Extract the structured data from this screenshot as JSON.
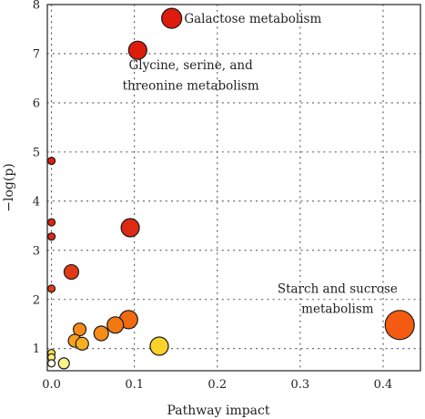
{
  "chart_data": {
    "type": "scatter",
    "xlabel": "Pathway impact",
    "ylabel": "−log(p)",
    "xlim": [
      -0.005,
      0.445
    ],
    "ylim": [
      0.55,
      8
    ],
    "xticks": [
      0,
      0.1,
      0.2,
      0.3,
      0.4
    ],
    "xtick_labels": [
      "0.0",
      "0.1",
      "0.2",
      "0.3",
      "0.4"
    ],
    "yticks": [
      1,
      2,
      3,
      4,
      5,
      6,
      7,
      8
    ],
    "ytick_labels": [
      "1",
      "2",
      "3",
      "4",
      "5",
      "6",
      "7",
      "8"
    ],
    "grid": true,
    "points": [
      {
        "x": 0.145,
        "y": 7.72,
        "size": 11,
        "color": "#dd1c0c"
      },
      {
        "x": 0.104,
        "y": 7.07,
        "size": 10,
        "color": "#dd1c0c"
      },
      {
        "x": 0.0,
        "y": 4.82,
        "size": 4,
        "color": "#dd2010"
      },
      {
        "x": 0.0,
        "y": 3.57,
        "size": 4,
        "color": "#dd2612"
      },
      {
        "x": 0.0,
        "y": 3.28,
        "size": 4,
        "color": "#dd2814"
      },
      {
        "x": 0.095,
        "y": 3.46,
        "size": 10,
        "color": "#dd2a12"
      },
      {
        "x": 0.024,
        "y": 2.56,
        "size": 8,
        "color": "#e03a14"
      },
      {
        "x": 0.0,
        "y": 2.22,
        "size": 4,
        "color": "#e03e14"
      },
      {
        "x": 0.42,
        "y": 1.48,
        "size": 16,
        "color": "#f45a10"
      },
      {
        "x": 0.093,
        "y": 1.59,
        "size": 10,
        "color": "#f06a12"
      },
      {
        "x": 0.077,
        "y": 1.48,
        "size": 9,
        "color": "#f27814"
      },
      {
        "x": 0.034,
        "y": 1.39,
        "size": 7,
        "color": "#f58a18"
      },
      {
        "x": 0.06,
        "y": 1.31,
        "size": 8,
        "color": "#f68c18"
      },
      {
        "x": 0.028,
        "y": 1.16,
        "size": 7,
        "color": "#f8a01e"
      },
      {
        "x": 0.037,
        "y": 1.1,
        "size": 7,
        "color": "#f9b020"
      },
      {
        "x": 0.13,
        "y": 1.05,
        "size": 10,
        "color": "#fad22a"
      },
      {
        "x": 0.0,
        "y": 0.91,
        "size": 4,
        "color": "#fbe04a"
      },
      {
        "x": 0.0,
        "y": 0.82,
        "size": 4,
        "color": "#fcee78"
      },
      {
        "x": 0.015,
        "y": 0.7,
        "size": 6,
        "color": "#fdf28c"
      },
      {
        "x": 0.0,
        "y": 0.7,
        "size": 4,
        "color": "#fffde8"
      }
    ],
    "annotations": [
      {
        "text": "Galactose metabolism",
        "x": 0.16,
        "y": 7.72,
        "anchor": "start"
      },
      {
        "text": "Glycine, serine, and",
        "x": 0.168,
        "y": 6.78,
        "anchor": "middle"
      },
      {
        "text": "threonine metabolism",
        "x": 0.168,
        "y": 6.36,
        "anchor": "middle"
      },
      {
        "text": "Starch and sucrose",
        "x": 0.345,
        "y": 2.23,
        "anchor": "middle"
      },
      {
        "text": "metabolism",
        "x": 0.345,
        "y": 1.82,
        "anchor": "middle"
      }
    ]
  }
}
